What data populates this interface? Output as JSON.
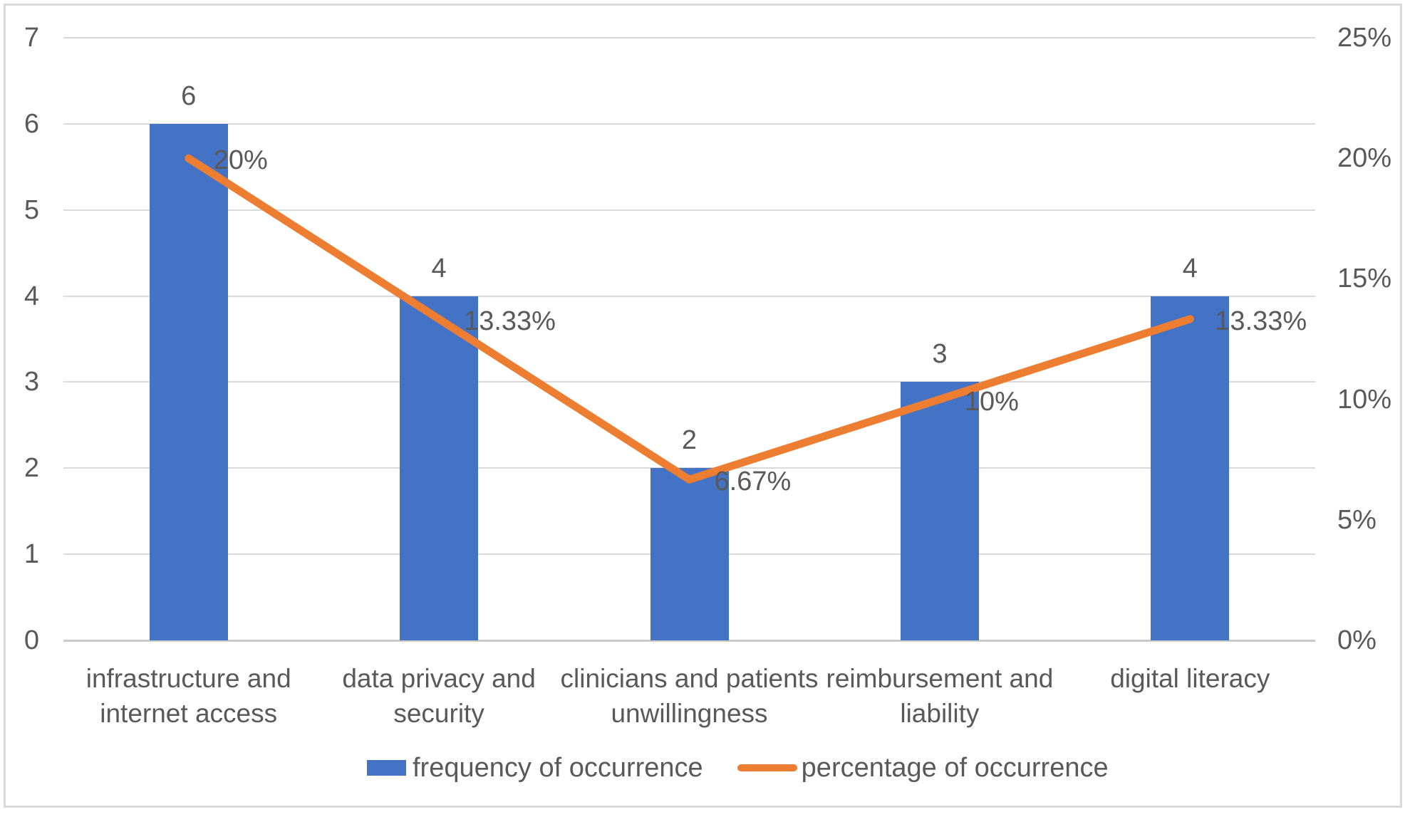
{
  "chart_data": {
    "type": "bar",
    "subtype": "combo-bar-line-dual-axis",
    "categories": [
      "infrastructure and internet access",
      "data privacy and security",
      "clinicians and patients unwillingness",
      "reimbursement and liability",
      "digital literacy"
    ],
    "category_label_lines": [
      [
        "infrastructure and",
        "internet access"
      ],
      [
        "data privacy and",
        "security"
      ],
      [
        "clinicians and patients",
        "unwillingness"
      ],
      [
        "reimbursement and",
        "liability"
      ],
      [
        "digital literacy"
      ]
    ],
    "series": [
      {
        "name": "frequency of occurrence",
        "type": "bar",
        "axis": "left",
        "color": "#4472C4",
        "values": [
          6,
          4,
          2,
          3,
          4
        ],
        "data_labels": [
          "6",
          "4",
          "2",
          "3",
          "4"
        ]
      },
      {
        "name": "percentage of occurrence",
        "type": "line",
        "axis": "right",
        "color": "#ED7D31",
        "values": [
          20,
          13.33,
          6.67,
          10,
          13.33
        ],
        "data_labels": [
          "20%",
          "13.33%",
          "6.67%",
          "10%",
          "13.33%"
        ]
      }
    ],
    "left_axis": {
      "ticks": [
        "0",
        "1",
        "2",
        "3",
        "4",
        "5",
        "6",
        "7"
      ],
      "min": 0,
      "max": 7
    },
    "right_axis": {
      "ticks": [
        "0%",
        "5%",
        "10%",
        "15%",
        "20%",
        "25%"
      ],
      "tick_values": [
        0,
        5,
        10,
        15,
        20,
        25
      ],
      "min": 0,
      "max": 25
    },
    "grid": "horizontal",
    "legend_position": "bottom",
    "title": ""
  },
  "colors": {
    "bar": "#4472C4",
    "line": "#ED7D31",
    "text": "#595959",
    "gridline": "#d9d9d9",
    "axis_line": "#c9c9c9",
    "frame_border": "#d9d9d9"
  }
}
